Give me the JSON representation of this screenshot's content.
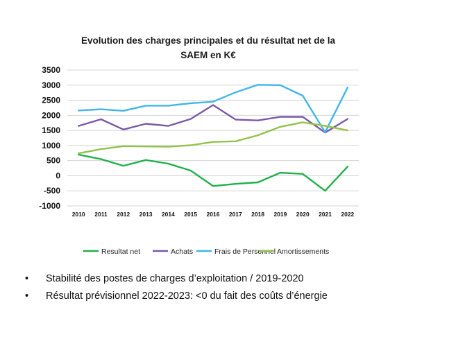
{
  "chart_data": {
    "type": "line",
    "title_lines": [
      "Evolution des charges principales et  du résultat net de la",
      "SAEM en K€"
    ],
    "categories": [
      "2010",
      "2011",
      "2012",
      "2013",
      "2014",
      "2015",
      "2016",
      "2017",
      "2018",
      "2019",
      "2020",
      "2021",
      "2022"
    ],
    "y_ticks": [
      "3500",
      "3000",
      "2500",
      "2000",
      "1500",
      "1000",
      "500",
      "0",
      "-500",
      "-1000"
    ],
    "ylim": [
      -1000,
      3500
    ],
    "grid": true,
    "legend_position": "bottom",
    "series": [
      {
        "name": "Resultat net",
        "color": "#1fb04a",
        "values": [
          700,
          550,
          330,
          520,
          400,
          170,
          -340,
          -270,
          -220,
          100,
          60,
          -500,
          300
        ]
      },
      {
        "name": "Achats",
        "color": "#7b58a6",
        "values": [
          1650,
          1870,
          1530,
          1720,
          1650,
          1880,
          2340,
          1860,
          1830,
          1950,
          1950,
          1430,
          1880
        ]
      },
      {
        "name": "Frais de Personnel",
        "color": "#3fb6e8",
        "values": [
          2160,
          2200,
          2150,
          2320,
          2320,
          2400,
          2450,
          2760,
          3010,
          3000,
          2650,
          1440,
          2920
        ]
      },
      {
        "name": "Amortissements",
        "color": "#93c24a",
        "values": [
          740,
          880,
          980,
          970,
          960,
          1010,
          1120,
          1140,
          1340,
          1620,
          1770,
          1650,
          1500
        ]
      }
    ]
  },
  "bullets": {
    "symbol": "•",
    "items": [
      "Stabilité des postes de charges d’exploitation / 2019-2020",
      "Résultat prévisionnel 2022-2023: <0 du fait des coûts d’énergie"
    ]
  }
}
